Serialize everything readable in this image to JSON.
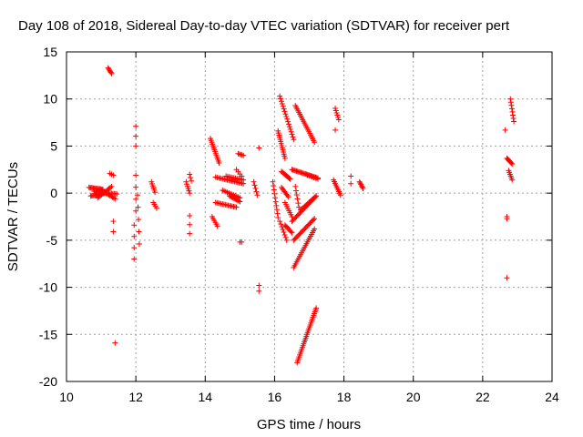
{
  "chart_data": {
    "type": "scatter",
    "title": "Day 108 of 2018, Sidereal Day-to-day VTEC variation (SDTVAR) for receiver pert",
    "xlabel": "GPS time / hours",
    "ylabel": "SDTVAR / TECUs",
    "xlim": [
      10,
      24
    ],
    "ylim": [
      -20,
      15
    ],
    "xticks": [
      10,
      12,
      14,
      16,
      18,
      20,
      22,
      24
    ],
    "yticks": [
      -20,
      -15,
      -10,
      -5,
      0,
      5,
      10,
      15
    ],
    "grid": true,
    "legend": "none",
    "marker": "+",
    "color": "#ff0000",
    "segments": [
      [
        10.65,
        0.6,
        11.05,
        0.4,
        14
      ],
      [
        10.7,
        -0.3,
        11.1,
        0.0,
        14
      ],
      [
        10.8,
        0.2,
        11.45,
        -0.1,
        18
      ],
      [
        10.9,
        -0.5,
        11.3,
        0.7,
        12
      ],
      [
        11.0,
        0.3,
        11.4,
        -0.6,
        12
      ],
      [
        11.2,
        13.3,
        11.3,
        12.7,
        6
      ],
      [
        11.25,
        2.1,
        11.35,
        1.9,
        3
      ],
      [
        11.35,
        -3.0,
        11.35,
        -4.1,
        2
      ],
      [
        11.4,
        -15.9,
        11.4,
        -15.9,
        1
      ],
      [
        11.95,
        -3.4,
        11.95,
        -7.0,
        4
      ],
      [
        12.0,
        7.1,
        12.0,
        5.0,
        3
      ],
      [
        12.0,
        1.9,
        12.0,
        -1.9,
        4
      ],
      [
        12.05,
        -0.2,
        12.1,
        -5.4,
        5
      ],
      [
        12.45,
        1.2,
        12.55,
        0.1,
        6
      ],
      [
        12.5,
        -1.0,
        12.6,
        -1.6,
        4
      ],
      [
        13.45,
        1.2,
        13.55,
        0.0,
        6
      ],
      [
        13.55,
        2.0,
        13.6,
        1.3,
        3
      ],
      [
        13.55,
        -2.4,
        13.55,
        -4.3,
        3
      ],
      [
        14.15,
        5.8,
        14.4,
        3.2,
        14
      ],
      [
        14.2,
        -2.5,
        14.35,
        -3.5,
        6
      ],
      [
        14.3,
        -1.0,
        14.9,
        -1.5,
        16
      ],
      [
        14.3,
        1.7,
        15.1,
        1.0,
        20
      ],
      [
        14.5,
        0.3,
        15.0,
        -0.5,
        12
      ],
      [
        14.6,
        1.8,
        15.1,
        1.4,
        12
      ],
      [
        14.7,
        -0.3,
        15.0,
        -0.9,
        10
      ],
      [
        14.95,
        4.2,
        15.1,
        4.0,
        5
      ],
      [
        14.9,
        2.5,
        15.05,
        1.8,
        4
      ],
      [
        15.0,
        -5.2,
        15.05,
        -5.2,
        2
      ],
      [
        15.4,
        1.2,
        15.5,
        -0.2,
        5
      ],
      [
        15.55,
        -9.8,
        15.55,
        -10.4,
        2
      ],
      [
        15.55,
        4.8,
        15.55,
        4.8,
        1
      ],
      [
        15.95,
        1.2,
        16.1,
        -2.6,
        10
      ],
      [
        16.1,
        6.6,
        16.3,
        3.7,
        14
      ],
      [
        16.15,
        10.3,
        16.55,
        5.7,
        18
      ],
      [
        16.15,
        -3.0,
        16.35,
        -5.0,
        8
      ],
      [
        16.2,
        2.3,
        16.45,
        1.5,
        10
      ],
      [
        16.2,
        0.6,
        16.4,
        -0.4,
        8
      ],
      [
        16.3,
        -1.0,
        16.5,
        -2.5,
        8
      ],
      [
        16.3,
        -3.4,
        16.5,
        -4.2,
        8
      ],
      [
        16.5,
        2.5,
        17.25,
        1.6,
        24
      ],
      [
        16.5,
        -3.0,
        17.2,
        -0.3,
        22
      ],
      [
        16.55,
        -5.0,
        17.15,
        -2.7,
        20
      ],
      [
        16.55,
        -7.9,
        17.15,
        -3.8,
        22
      ],
      [
        16.6,
        0.7,
        16.7,
        -1.5,
        6
      ],
      [
        16.6,
        9.3,
        17.15,
        5.4,
        22
      ],
      [
        16.65,
        -18.0,
        17.2,
        -12.2,
        30
      ],
      [
        16.75,
        -1.8,
        17.2,
        -0.3,
        12
      ],
      [
        16.95,
        1.9,
        17.25,
        1.5,
        6
      ],
      [
        17.7,
        1.4,
        17.9,
        -0.2,
        10
      ],
      [
        17.75,
        9.0,
        17.85,
        7.8,
        6
      ],
      [
        17.75,
        6.7,
        17.75,
        6.7,
        1
      ],
      [
        18.2,
        1.8,
        18.2,
        1.0,
        2
      ],
      [
        18.45,
        1.2,
        18.55,
        0.5,
        6
      ],
      [
        22.65,
        6.7,
        22.65,
        6.7,
        1
      ],
      [
        22.7,
        -2.5,
        22.7,
        -2.7,
        2
      ],
      [
        22.7,
        -9.0,
        22.7,
        -9.0,
        1
      ],
      [
        22.7,
        3.7,
        22.85,
        3.1,
        8
      ],
      [
        22.75,
        2.4,
        22.85,
        1.4,
        6
      ],
      [
        22.8,
        10.0,
        22.9,
        7.6,
        8
      ]
    ]
  }
}
